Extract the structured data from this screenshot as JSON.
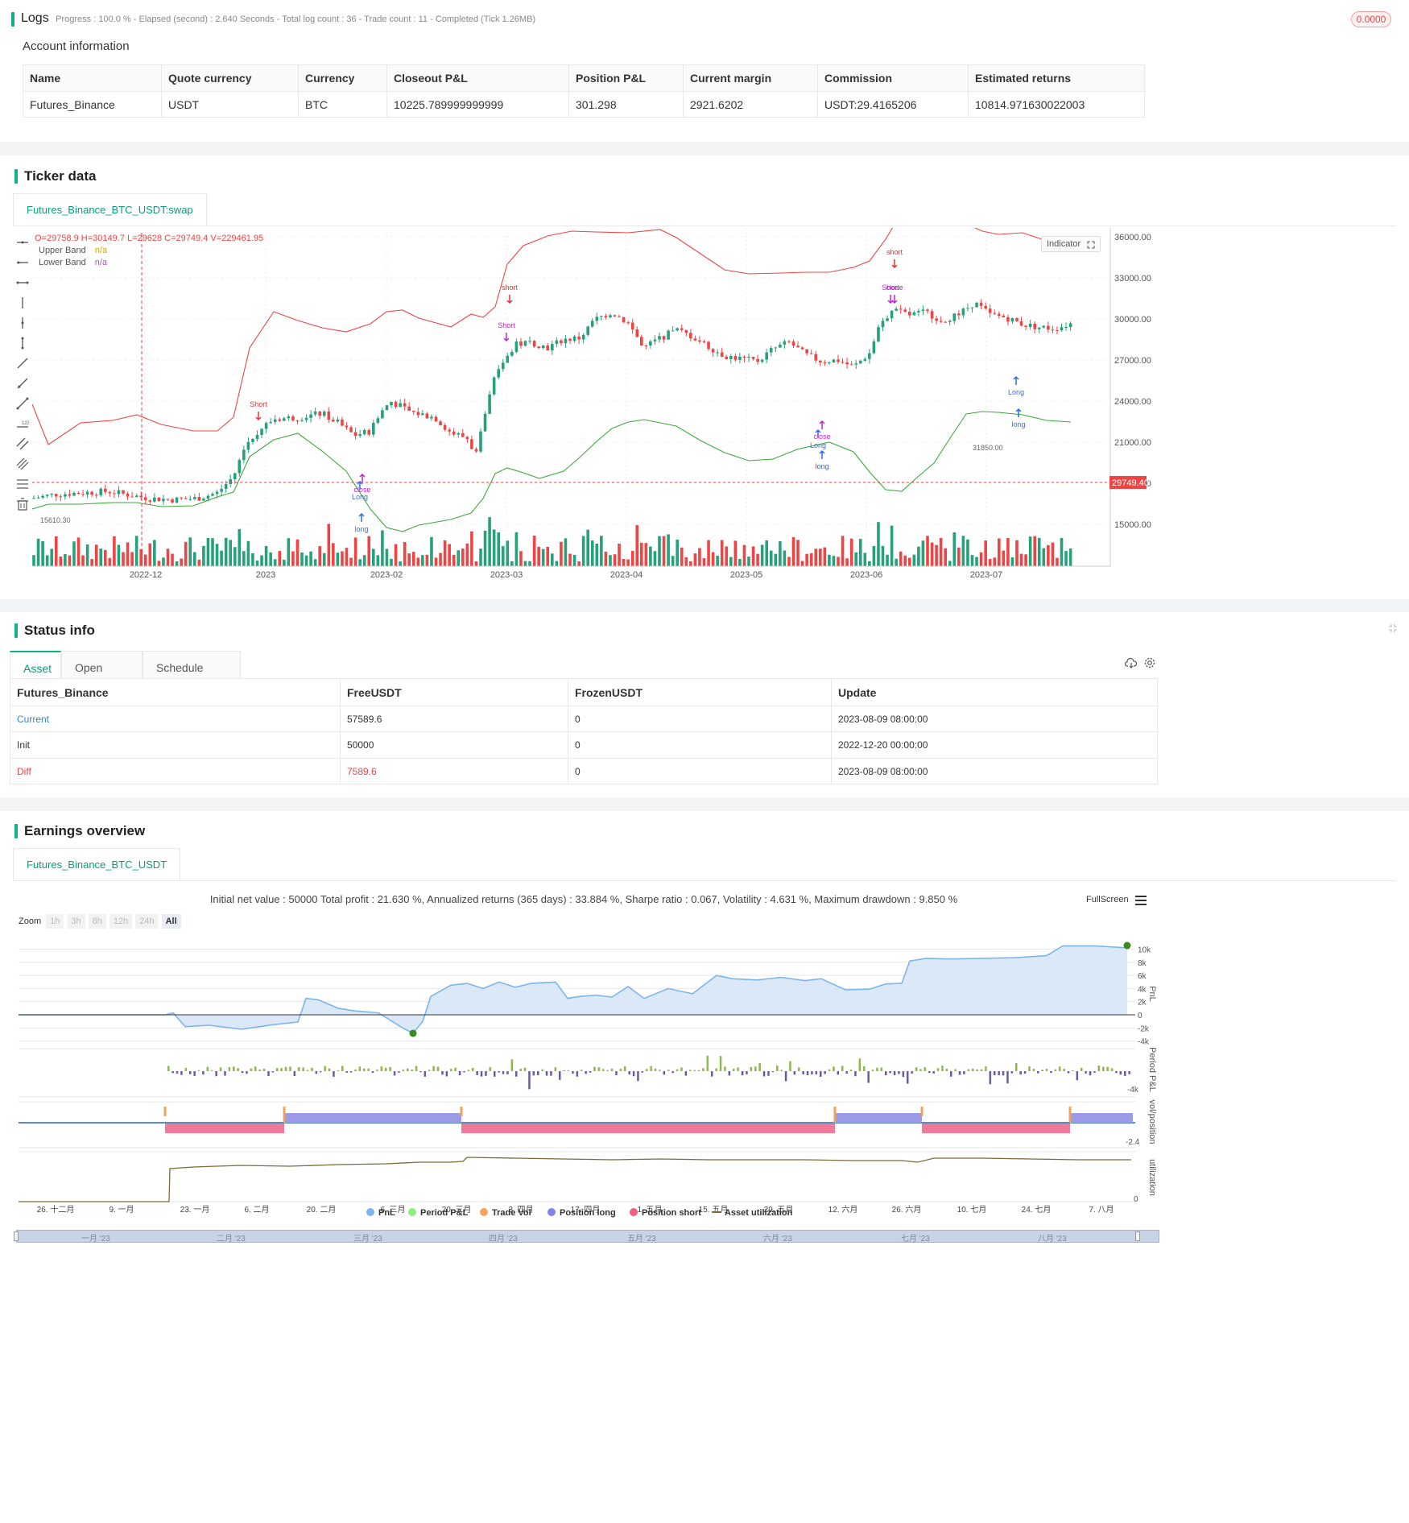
{
  "logs": {
    "title": "Logs",
    "status": "Progress : 100.0 % - Elapsed (second) : 2.640  Seconds - Total log count : 36 - Trade count : 11 - Completed (Tick 1.26MB)",
    "badge": "0.0000"
  },
  "account": {
    "title": "Account information",
    "columns": [
      "Name",
      "Quote currency",
      "Currency",
      "Closeout P&L",
      "Position P&L",
      "Current margin",
      "Commission",
      "Estimated returns"
    ],
    "row": [
      "Futures_Binance",
      "USDT",
      "BTC",
      "10225.789999999999",
      "301.298",
      "2921.6202",
      "USDT:29.4165206",
      "10814.971630022003"
    ]
  },
  "ticker": {
    "title": "Ticker data",
    "tab": "Futures_Binance_BTC_USDT:swap",
    "ohlc": "O=29758.9 H=30149.7 L=29628 C=29749.4 V=229461.95",
    "legend_upper": "Upper Band",
    "legend_lower": "Lower Band",
    "na": "n/a",
    "indicator_btn": "Indicator",
    "last_price": "29749.40",
    "high_label": "31850.00",
    "low_label": "15610.30",
    "price_ticks": [
      "36000.00",
      "33000.00",
      "30000.00",
      "27000.00",
      "24000.00",
      "21000.00",
      "18000.00",
      "15000.00"
    ],
    "date_ticks": [
      "2022-12",
      "2023",
      "2023-02",
      "2023-03",
      "2023-04",
      "2023-05",
      "2023-06",
      "2023-07"
    ],
    "signals": [
      "short",
      "long",
      "Short",
      "Long",
      "close"
    ]
  },
  "status": {
    "title": "Status info",
    "tabs": [
      "Asset",
      "Open orders",
      "Schedule orders"
    ],
    "columns": [
      "Futures_Binance",
      "FreeUSDT",
      "FrozenUSDT",
      "Update"
    ],
    "rows": [
      [
        "Current",
        "57589.6",
        "0",
        "2023-08-09 08:00:00"
      ],
      [
        "Init",
        "50000",
        "0",
        "2022-12-20 00:00:00"
      ],
      [
        "Diff",
        "7589.6",
        "0",
        "2023-08-09 08:00:00"
      ]
    ]
  },
  "earnings": {
    "title": "Earnings overview",
    "tab": "Futures_Binance_BTC_USDT",
    "summary": "Initial net value : 50000 Total profit : 21.630 %, Annualized returns (365 days) : 33.884 %, Sharpe ratio : 0.067, Volatility : 4.631 %, Maximum drawdown : 9.850 %",
    "fullscreen": "FullScreen",
    "zoom_label": "Zoom",
    "zoom_options": [
      "1h",
      "3h",
      "8h",
      "12h",
      "24h",
      "All"
    ],
    "pnl_ticks": [
      "10k",
      "8k",
      "6k",
      "4k",
      "2k",
      "0",
      "-2k",
      "-4k"
    ],
    "period_tick": "-4k",
    "vol_tick": "-2.4",
    "util_tick": "0",
    "axis_names": [
      "PnL",
      "Period P&L",
      "vol/position",
      "utilization"
    ],
    "date_ticks": [
      "26. 十二月",
      "9. 一月",
      "23. 一月",
      "6. 二月",
      "20. 二月",
      "6. 三月",
      "20. 三月",
      "3. 四月",
      "17. 四月",
      "1. 五月",
      "15. 五月",
      "29. 五月",
      "12. 六月",
      "26. 六月",
      "10. 七月",
      "24. 七月",
      "7. 八月"
    ],
    "legend": [
      "PnL",
      "Period P&L",
      "Trade Vol",
      "Position long",
      "Position short",
      "Asset utilization"
    ],
    "navigator": [
      "一月 '23",
      "二月 '23",
      "三月 '23",
      "四月 '23",
      "五月 '23",
      "六月 '23",
      "七月 '23",
      "八月 '23"
    ]
  },
  "colors": {
    "accent": "#0fb18a",
    "up": "#26a17b",
    "down": "#ef4444",
    "upper_band": "#ef4444",
    "lower_band": "#3da83d"
  }
}
